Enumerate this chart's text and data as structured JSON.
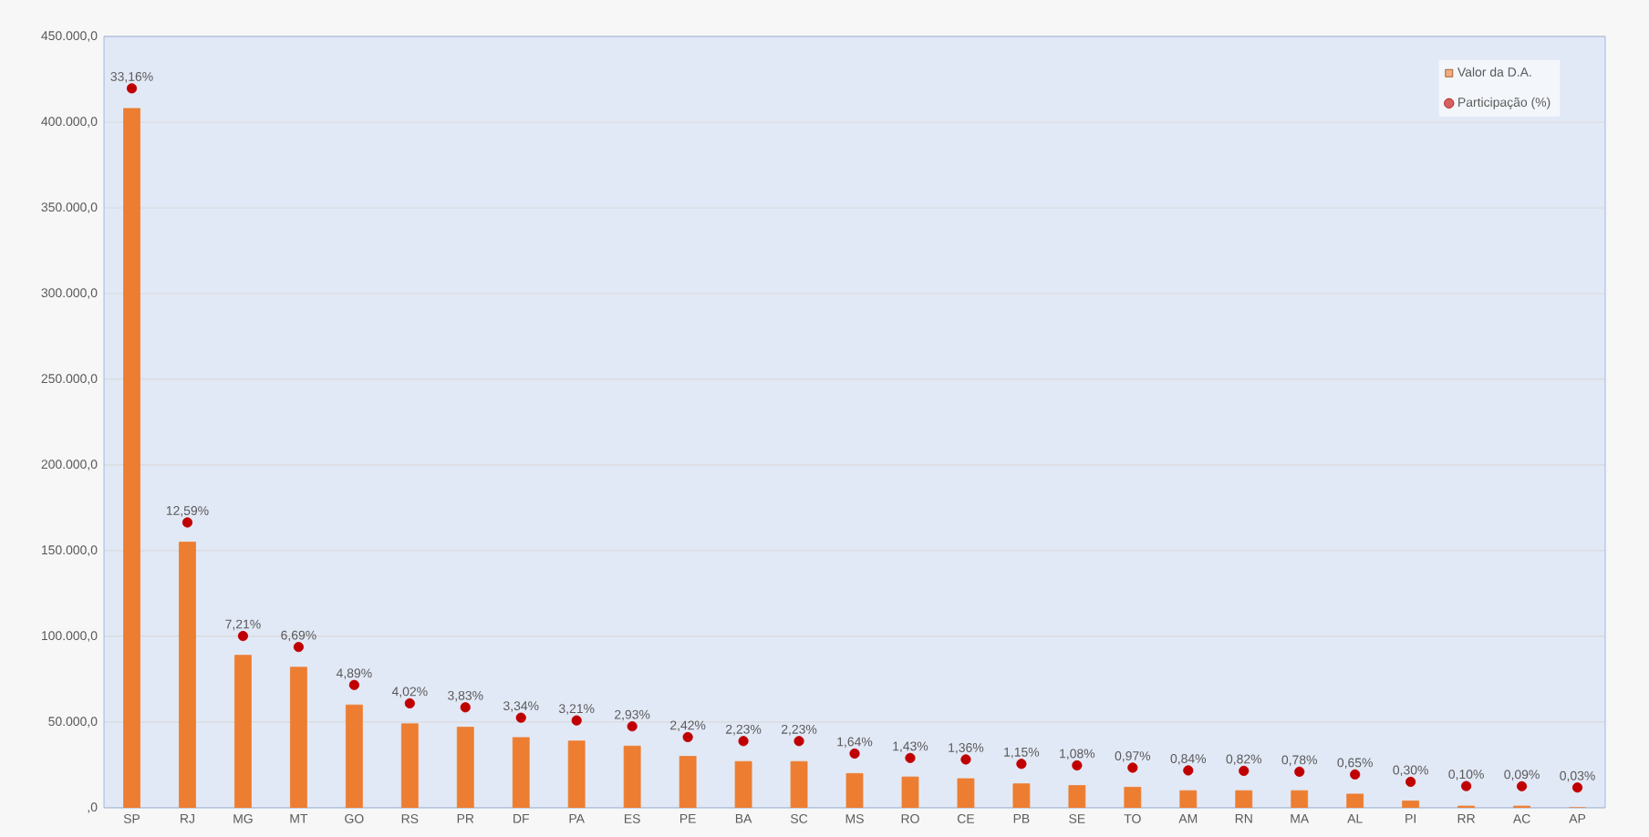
{
  "chart_data": {
    "type": "bar",
    "categories": [
      "SP",
      "RJ",
      "MG",
      "MT",
      "GO",
      "RS",
      "PR",
      "DF",
      "PA",
      "ES",
      "PE",
      "BA",
      "SC",
      "MS",
      "RO",
      "CE",
      "PB",
      "SE",
      "TO",
      "AM",
      "RN",
      "MA",
      "AL",
      "PI",
      "RR",
      "AC",
      "AP"
    ],
    "series": [
      {
        "name": "Valor da D.A.",
        "color": "#ed7d31",
        "values": [
          408000,
          155000,
          89000,
          82000,
          60000,
          49000,
          47000,
          41000,
          39000,
          36000,
          30000,
          27000,
          27000,
          20000,
          18000,
          17000,
          14000,
          13000,
          12000,
          10000,
          10000,
          10000,
          8000,
          4000,
          1000,
          1000,
          0
        ]
      },
      {
        "name": "Participação (%)",
        "type": "scatter",
        "axis": "y2",
        "color": "#c00000",
        "marker": "circle",
        "values": [
          33.16,
          12.59,
          7.21,
          6.69,
          4.89,
          4.02,
          3.83,
          3.34,
          3.21,
          2.93,
          2.42,
          2.23,
          2.23,
          1.64,
          1.43,
          1.36,
          1.15,
          1.08,
          0.97,
          0.84,
          0.82,
          0.78,
          0.65,
          0.3,
          0.1,
          0.09,
          0.03
        ],
        "value_labels": [
          "33,16%",
          "12,59%",
          "7,21%",
          "6,69%",
          "4,89%",
          "4,02%",
          "3,83%",
          "3,34%",
          "3,21%",
          "2,93%",
          "2,42%",
          "2,23%",
          "2,23%",
          "1,64%",
          "1,43%",
          "1,36%",
          "1,15%",
          "1,08%",
          "0,97%",
          "0,84%",
          "0,82%",
          "0,78%",
          "0,65%",
          "0,30%",
          "0,10%",
          "0,09%",
          "0,03%"
        ]
      }
    ],
    "ylim": [
      0,
      450000
    ],
    "yticks": [
      {
        "value": 0,
        "label": ",0"
      },
      {
        "value": 50000,
        "label": "50.000,0"
      },
      {
        "value": 100000,
        "label": "100.000,0"
      },
      {
        "value": 150000,
        "label": "150.000,0"
      },
      {
        "value": 200000,
        "label": "200.000,0"
      },
      {
        "value": 250000,
        "label": "250.000,0"
      },
      {
        "value": 300000,
        "label": "300.000,0"
      },
      {
        "value": 350000,
        "label": "350.000,0"
      },
      {
        "value": 400000,
        "label": "400.000,0"
      },
      {
        "value": 450000,
        "label": "450.000,0"
      }
    ],
    "y2lim": [
      -0.93,
      35.62
    ],
    "tick_labels": "xy",
    "grid": "y",
    "legend": "top right"
  }
}
